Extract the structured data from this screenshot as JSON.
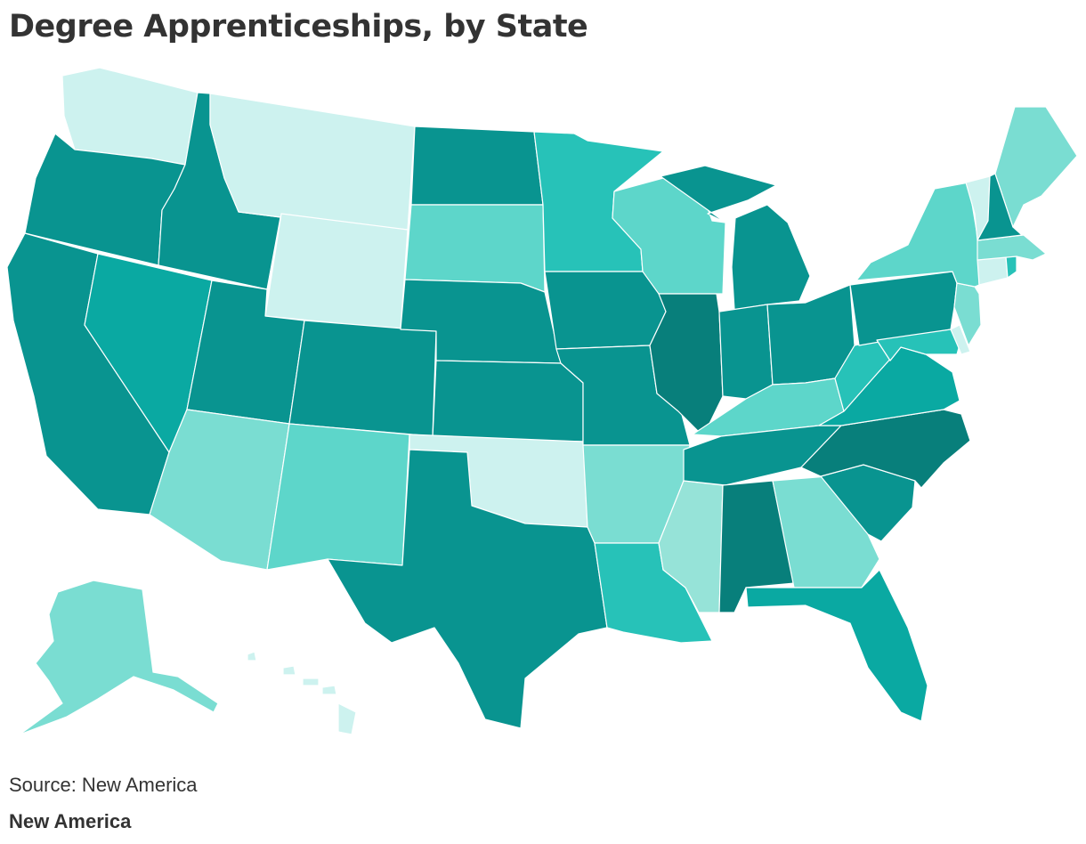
{
  "title": "Degree Apprenticeships, by State",
  "source": "Source: New America",
  "brand": "New America",
  "colors": {
    "lightest": "#cdf2ef",
    "pale": "#96e3d8",
    "light": "#7addd2",
    "mid_light": "#5dd6ca",
    "mid": "#27c2b8",
    "teal": "#0aa9a2",
    "dark": "#099490",
    "darkest": "#087f7b"
  },
  "map_data": {
    "type": "choropleth",
    "states": {
      "WA": "lightest",
      "OR": "dark",
      "CA": "dark",
      "NV": "teal",
      "ID": "dark",
      "MT": "lightest",
      "WY": "lightest",
      "UT": "dark",
      "AZ": "light",
      "CO": "dark",
      "NM": "mid_light",
      "ND": "dark",
      "SD": "mid_light",
      "NE": "dark",
      "KS": "dark",
      "OK": "lightest",
      "TX": "dark",
      "MN": "mid",
      "IA": "dark",
      "MO": "dark",
      "AR": "light",
      "LA": "mid",
      "WI": "mid_light",
      "IL": "darkest",
      "MS": "pale",
      "MI": "dark",
      "IN": "dark",
      "OH": "dark",
      "KY": "mid_light",
      "TN": "dark",
      "AL": "darkest",
      "GA": "light",
      "FL": "teal",
      "SC": "dark",
      "NC": "darkest",
      "VA": "teal",
      "WV": "mid",
      "MD": "mid",
      "DE": "lightest",
      "NJ": "light",
      "PA": "dark",
      "NY": "mid_light",
      "CT": "lightest",
      "RI": "mid",
      "MA": "light",
      "VT": "lightest",
      "NH": "dark",
      "ME": "light",
      "AK": "light",
      "HI": "lightest"
    }
  }
}
